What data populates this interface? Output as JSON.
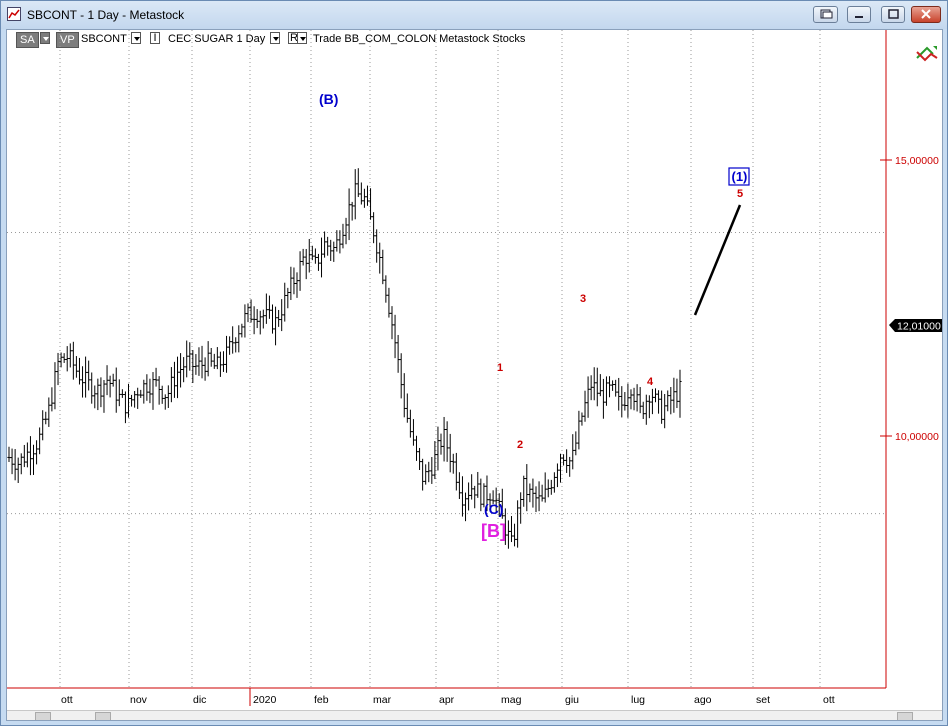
{
  "window": {
    "title": "SBCONT - 1 Day - Metastock"
  },
  "toolbar": {
    "sa": "SA",
    "vp": "VP",
    "symbol": "SBCONT",
    "ind": "I",
    "desc": "CEC SUGAR  1 Day",
    "r": "R",
    "trade": "Trade  BB_COM_COLON  Metastock  Stocks"
  },
  "chart_data": {
    "type": "ohlc",
    "y_ticks": [
      "15,00000",
      "10,00000"
    ],
    "last_price_label": "12,01000",
    "x_ticks": [
      "ott",
      "nov",
      "dic",
      "2020",
      "feb",
      "mar",
      "apr",
      "mag",
      "giu",
      "lug",
      "ago",
      "set",
      "ott"
    ],
    "ylim": [
      6.9,
      18.6
    ],
    "grid": "dotted",
    "closes": [
      11.0,
      10.9,
      11.1,
      11.3,
      11.8,
      12.7,
      12.8,
      12.5,
      12.3,
      12.2,
      12.4,
      12.1,
      11.9,
      12.2,
      12.3,
      12.3,
      12.1,
      12.5,
      12.7,
      12.6,
      12.7,
      12.6,
      12.8,
      13.2,
      13.5,
      13.6,
      13.5,
      13.4,
      13.8,
      14.2,
      14.6,
      14.4,
      14.8,
      14.7,
      15.2,
      15.7,
      15.6,
      15.0,
      14.2,
      13.2,
      12.0,
      11.2,
      10.6,
      10.9,
      11.4,
      10.9,
      10.3,
      10.5,
      10.3,
      10.4,
      9.9,
      9.4,
      10.5,
      10.3,
      10.2,
      10.6,
      11.1,
      10.9,
      11.7,
      12.3,
      12.1,
      12.2,
      11.9,
      12.3,
      11.8,
      12.2,
      11.8,
      12.0,
      12.2
    ],
    "annotations": [
      {
        "label": "(B)",
        "color": "#0000cc"
      },
      {
        "label": "(C)",
        "color": "#0000cc"
      },
      {
        "label": "[B]",
        "color": "#e020e0"
      },
      {
        "label": "1",
        "color": "#cc0000"
      },
      {
        "label": "2",
        "color": "#cc0000"
      },
      {
        "label": "3",
        "color": "#cc0000"
      },
      {
        "label": "4",
        "color": "#cc0000"
      },
      {
        "label": "5",
        "color": "#cc0000"
      },
      {
        "label": "(1)",
        "color": "#0000cc"
      }
    ]
  }
}
